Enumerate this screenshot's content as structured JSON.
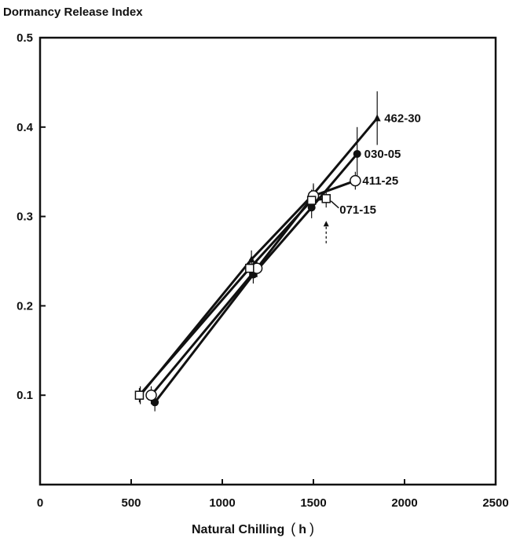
{
  "chart_data": {
    "type": "line",
    "title": "",
    "ylabel": "Dormancy Release Index",
    "xlabel": "Natural Chilling (h)",
    "xlabel_parts": {
      "text": "Natural Chilling",
      "unit": "h"
    },
    "xlim": [
      0,
      2500
    ],
    "ylim": [
      0,
      0.5
    ],
    "x_ticks": [
      0,
      500,
      1000,
      1500,
      2000,
      2500
    ],
    "y_ticks": [
      0.1,
      0.2,
      0.3,
      0.4,
      0.5
    ],
    "x_tick_labels": [
      "0",
      "500",
      "1000",
      "1500",
      "2000",
      "2500"
    ],
    "y_tick_labels": [
      "0.1",
      "0.2",
      "0.3",
      "0.4",
      "0.5"
    ],
    "grid": false,
    "legend": "direct labels at line ends",
    "series": [
      {
        "name": "462-30",
        "marker": "filled-triangle",
        "x": [
          550,
          1160,
          1500,
          1850
        ],
        "y": [
          0.1,
          0.252,
          0.325,
          0.41
        ],
        "err": [
          0.01,
          0.01,
          0.012,
          0.03
        ]
      },
      {
        "name": "030-05",
        "marker": "filled-circle",
        "x": [
          630,
          1170,
          1490,
          1740
        ],
        "y": [
          0.092,
          0.235,
          0.31,
          0.37
        ],
        "err": [
          0.01,
          0.01,
          0.012,
          0.03
        ]
      },
      {
        "name": "411-25",
        "marker": "open-circle",
        "x": [
          610,
          1190,
          1500,
          1730
        ],
        "y": [
          0.1,
          0.242,
          0.323,
          0.34
        ],
        "err": [
          0.01,
          0.01,
          0.012,
          0.01
        ]
      },
      {
        "name": "071-15",
        "marker": "open-square",
        "x": [
          545,
          1150,
          1490,
          1570
        ],
        "y": [
          0.1,
          0.242,
          0.318,
          0.32
        ],
        "err": [
          0.008,
          0.01,
          0.012,
          0.01
        ]
      }
    ],
    "annotations": [
      {
        "type": "arrow-up",
        "x": 1570,
        "y_from": 0.27,
        "y_to": 0.295
      }
    ]
  }
}
